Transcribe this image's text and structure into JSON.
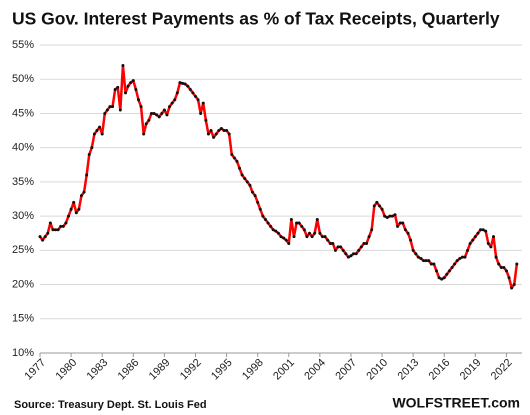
{
  "chart_data": {
    "type": "line",
    "title": "US Gov. Interest Payments as % of Tax Receipts, Quarterly",
    "source": "Source: Treasury Dept. St. Louis Fed",
    "brand": "WOLFSTREET.com",
    "x": [
      1977,
      1977.25,
      1977.5,
      1977.75,
      1978,
      1978.25,
      1978.5,
      1978.75,
      1979,
      1979.25,
      1979.5,
      1979.75,
      1980,
      1980.25,
      1980.5,
      1980.75,
      1981,
      1981.25,
      1981.5,
      1981.75,
      1982,
      1982.25,
      1982.5,
      1982.75,
      1983,
      1983.25,
      1983.5,
      1983.75,
      1984,
      1984.25,
      1984.5,
      1984.75,
      1985,
      1985.25,
      1985.5,
      1985.75,
      1986,
      1986.25,
      1986.5,
      1986.75,
      1987,
      1987.25,
      1987.5,
      1987.75,
      1988,
      1988.25,
      1988.5,
      1988.75,
      1989,
      1989.25,
      1989.5,
      1989.75,
      1990,
      1990.25,
      1990.5,
      1990.75,
      1991,
      1991.25,
      1991.5,
      1991.75,
      1992,
      1992.25,
      1992.5,
      1992.75,
      1993,
      1993.25,
      1993.5,
      1993.75,
      1994,
      1994.25,
      1994.5,
      1994.75,
      1995,
      1995.25,
      1995.5,
      1995.75,
      1996,
      1996.25,
      1996.5,
      1996.75,
      1997,
      1997.25,
      1997.5,
      1997.75,
      1998,
      1998.25,
      1998.5,
      1998.75,
      1999,
      1999.25,
      1999.5,
      1999.75,
      2000,
      2000.25,
      2000.5,
      2000.75,
      2001,
      2001.25,
      2001.5,
      2001.75,
      2002,
      2002.25,
      2002.5,
      2002.75,
      2003,
      2003.25,
      2003.5,
      2003.75,
      2004,
      2004.25,
      2004.5,
      2004.75,
      2005,
      2005.25,
      2005.5,
      2005.75,
      2006,
      2006.25,
      2006.5,
      2006.75,
      2007,
      2007.25,
      2007.5,
      2007.75,
      2008,
      2008.25,
      2008.5,
      2008.75,
      2009,
      2009.25,
      2009.5,
      2009.75,
      2010,
      2010.25,
      2010.5,
      2010.75,
      2011,
      2011.25,
      2011.5,
      2011.75,
      2012,
      2012.25,
      2012.5,
      2012.75,
      2013,
      2013.25,
      2013.5,
      2013.75,
      2014,
      2014.25,
      2014.5,
      2014.75,
      2015,
      2015.25,
      2015.5,
      2015.75,
      2016,
      2016.25,
      2016.5,
      2016.75,
      2017,
      2017.25,
      2017.5,
      2017.75,
      2018,
      2018.25,
      2018.5,
      2018.75,
      2019,
      2019.25,
      2019.5,
      2019.75,
      2020,
      2020.25,
      2020.5,
      2020.75,
      2021,
      2021.25,
      2021.5,
      2021.75,
      2022,
      2022.25,
      2022.5,
      2022.75,
      2023
    ],
    "series": [
      {
        "color": "#ff0000",
        "marker_color": "#111111",
        "values": [
          27,
          26.5,
          27,
          27.5,
          29,
          28,
          28,
          28,
          28.5,
          28.5,
          29,
          30,
          31,
          32,
          30.5,
          31,
          33,
          33.5,
          36,
          39,
          40,
          42,
          42.5,
          43,
          42,
          45,
          45.5,
          46,
          46,
          48.5,
          48.8,
          45.5,
          52,
          48,
          49,
          49.5,
          49.8,
          48.5,
          47,
          46,
          42,
          43.5,
          44,
          45,
          45,
          44.8,
          44.5,
          45,
          45.5,
          44.8,
          46,
          46.5,
          47,
          48,
          49.5,
          49.4,
          49.3,
          49,
          48.5,
          48,
          47.5,
          47,
          45,
          46.5,
          44,
          42,
          42.5,
          41.5,
          42,
          42.5,
          42.8,
          42.5,
          42.5,
          42,
          39,
          38.5,
          38,
          37,
          36,
          35.5,
          35,
          34.5,
          33.5,
          33,
          32,
          31,
          30,
          29.5,
          29,
          28.5,
          28,
          27.8,
          27.5,
          27,
          26.8,
          26.5,
          26,
          29.5,
          27,
          29,
          29,
          28.5,
          28,
          27,
          27.5,
          27,
          27.5,
          29.5,
          27.5,
          27,
          27,
          26.5,
          26,
          26,
          25,
          25.5,
          25.5,
          25,
          24.5,
          24,
          24.2,
          24.5,
          24.5,
          25,
          25.5,
          26,
          26,
          27,
          28,
          31.5,
          32,
          31.5,
          31,
          30,
          29.8,
          30,
          30,
          30.2,
          28.5,
          29,
          29,
          28,
          27.5,
          26.5,
          25,
          24.5,
          24,
          23.8,
          23.5,
          23.5,
          23.5,
          23,
          23,
          22,
          21,
          20.8,
          21,
          21.5,
          22,
          22.5,
          23,
          23.5,
          23.8,
          24,
          24,
          25,
          26,
          26.5,
          27,
          27.5,
          28,
          28,
          27.8,
          26,
          25.5,
          27,
          24,
          23,
          22.5,
          22.5,
          22,
          21,
          19.5,
          20,
          23
        ]
      }
    ],
    "xlim": [
      1977,
      2023.5
    ],
    "xticks": [
      1977,
      1980,
      1983,
      1986,
      1989,
      1992,
      1995,
      1998,
      2001,
      2004,
      2007,
      2010,
      2013,
      2016,
      2019,
      2022
    ],
    "ylim": [
      10,
      55
    ],
    "yticks": [
      {
        "value": 10,
        "label": "10%"
      },
      {
        "value": 15,
        "label": "15%"
      },
      {
        "value": 20,
        "label": "20%"
      },
      {
        "value": 25,
        "label": "25%"
      },
      {
        "value": 30,
        "label": "30%"
      },
      {
        "value": 35,
        "label": "35%"
      },
      {
        "value": 40,
        "label": "40%"
      },
      {
        "value": 45,
        "label": "45%"
      },
      {
        "value": 50,
        "label": "50%"
      },
      {
        "value": 55,
        "label": "55%"
      }
    ],
    "grid": true
  }
}
